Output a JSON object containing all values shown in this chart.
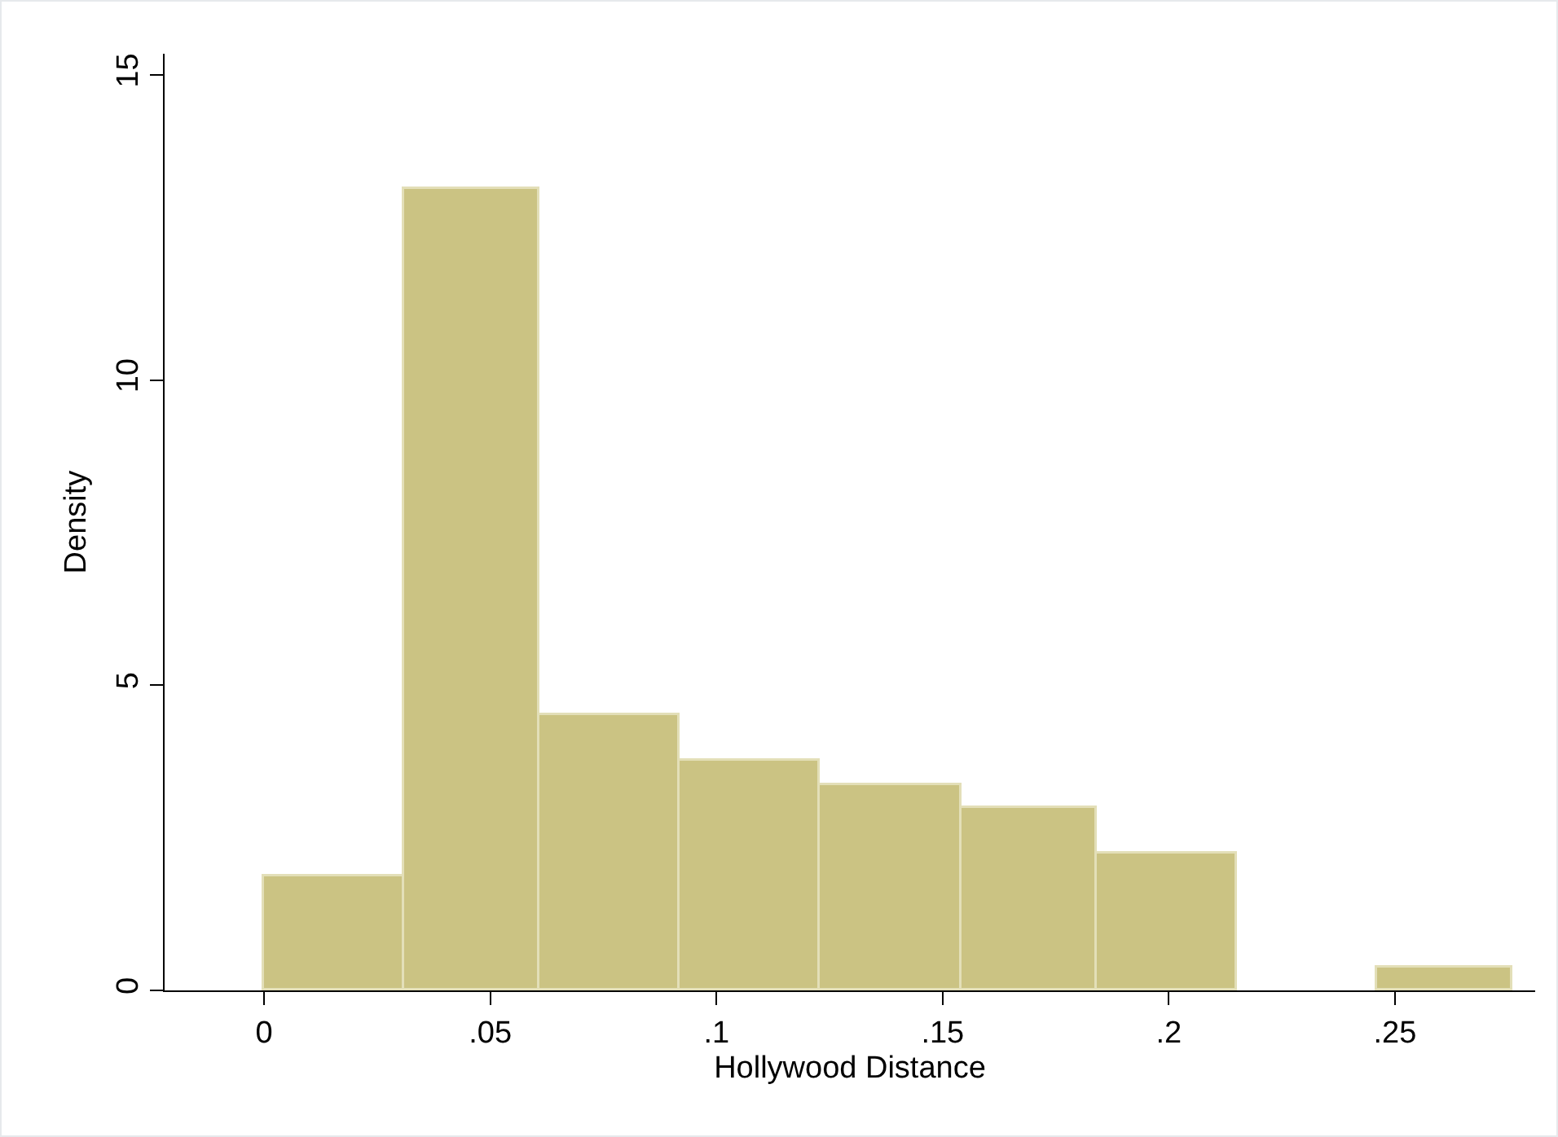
{
  "chart_data": {
    "type": "histogram",
    "xlabel": "Hollywood Distance",
    "ylabel": "Density",
    "bins": [
      0,
      0.031,
      0.061,
      0.092,
      0.123,
      0.154,
      0.184,
      0.215,
      0.246,
      0.276
    ],
    "values": [
      1.87,
      13.13,
      4.51,
      3.76,
      3.36,
      2.99,
      2.24,
      0,
      0.37
    ],
    "color": "#cbc383",
    "xlim": [
      -0.022,
      0.281
    ],
    "xticks": [
      0,
      {
        "value": 0.05,
        "label": ".05"
      },
      {
        "value": 0.1,
        "label": ".1"
      },
      {
        "value": 0.15,
        "label": ".15"
      },
      {
        "value": 0.2,
        "label": ".2"
      },
      {
        "value": 0.25,
        "label": ".25"
      }
    ],
    "ylim": [
      0,
      15.35
    ],
    "yticks": [
      0,
      5,
      10,
      15
    ],
    "grid": false
  }
}
